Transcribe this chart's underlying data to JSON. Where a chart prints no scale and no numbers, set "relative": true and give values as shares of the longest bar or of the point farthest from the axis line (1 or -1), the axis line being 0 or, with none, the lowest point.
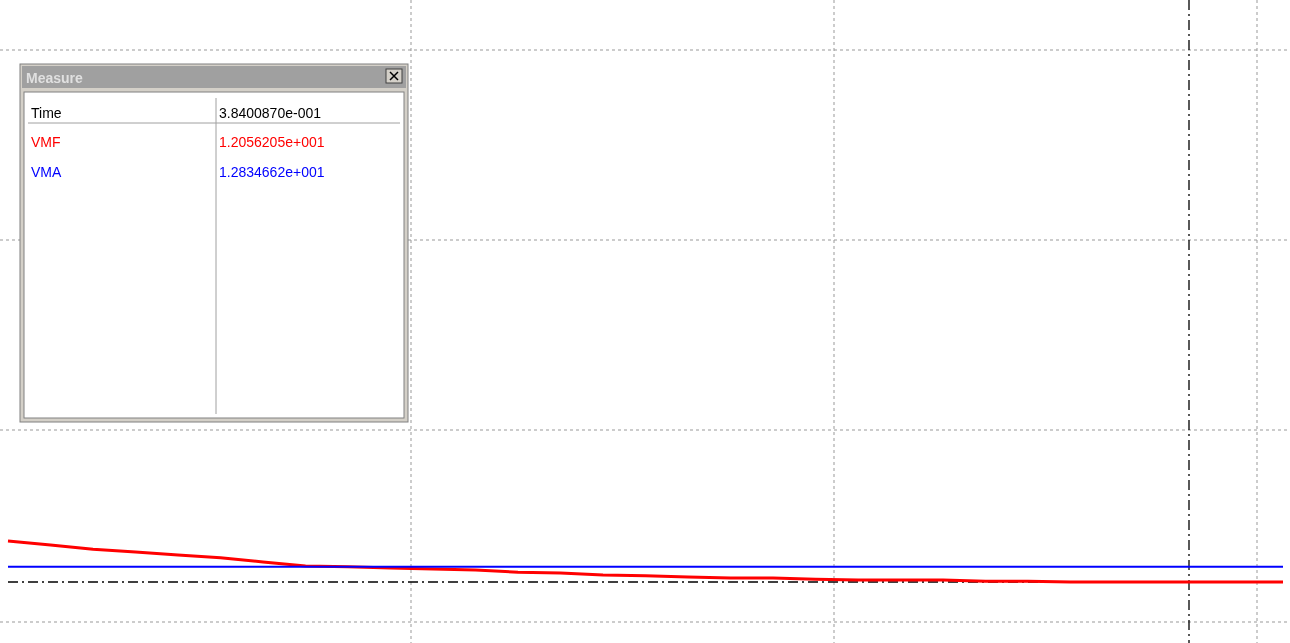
{
  "chart_data": {
    "type": "line",
    "relative": true,
    "grid": true,
    "legend": "top left",
    "categories": [
      null,
      null,
      null,
      null,
      null,
      null,
      null,
      null,
      null,
      null,
      null,
      null,
      null,
      null,
      null,
      null,
      null,
      null,
      null,
      null,
      null,
      null,
      null,
      null,
      null,
      null,
      null,
      null,
      null,
      null,
      null
    ],
    "series": [
      {
        "name": "VMF",
        "color": "#ff0000",
        "values": [
          1.0,
          0.9,
          0.8,
          0.73,
          0.66,
          0.59,
          0.49,
          0.39,
          0.37,
          0.34,
          0.32,
          0.29,
          0.24,
          0.22,
          0.17,
          0.15,
          0.12,
          0.1,
          0.1,
          0.07,
          0.05,
          0.05,
          0.05,
          0.02,
          0.02,
          0,
          0,
          0,
          0,
          0,
          0
        ]
      },
      {
        "name": "VMA",
        "color": "#0000ff",
        "values": [
          0.37,
          0.37,
          0.37,
          0.37,
          0.37,
          0.37,
          0.37,
          0.37,
          0.37,
          0.37,
          0.37,
          0.37,
          0.37,
          0.37,
          0.37,
          0.37,
          0.37,
          0.37,
          0.37,
          0.37,
          0.37,
          0.37,
          0.37,
          0.37,
          0.37,
          0.37,
          0.37,
          0.37,
          0.37,
          0.37,
          0.37
        ]
      }
    ],
    "ref_lines": [
      {
        "axis": "y",
        "value": 0,
        "color": "#000000",
        "line_style": "dashdot"
      }
    ],
    "annotations": [
      "Measure",
      "Time",
      "3.8400870e-001",
      "1.2056205e+001",
      "1.2834662e+001"
    ]
  }
}
